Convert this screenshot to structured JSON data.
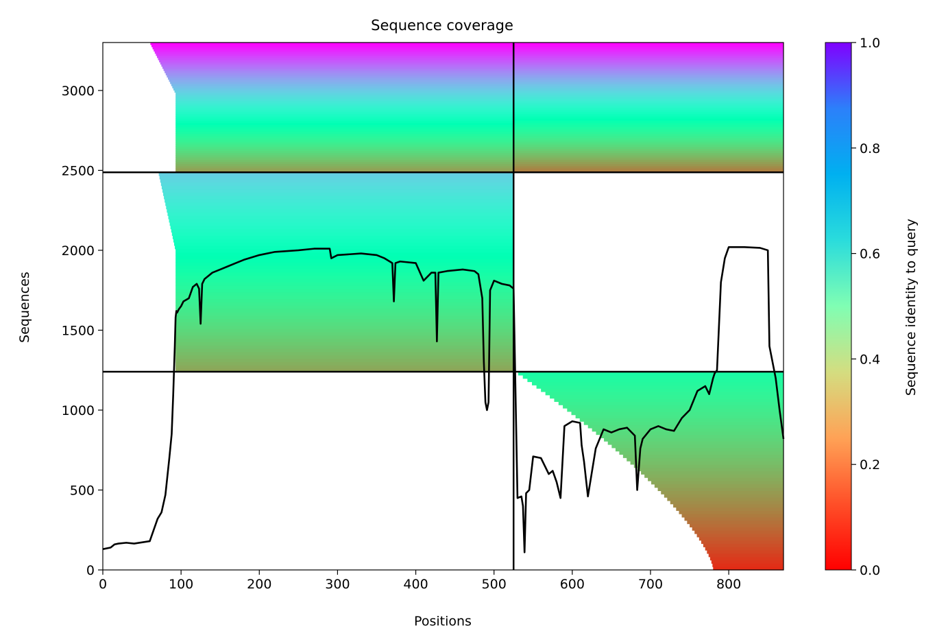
{
  "chart_data": {
    "type": "heatmap",
    "title": "Sequence coverage",
    "xlabel": "Positions",
    "ylabel": "Sequences",
    "xlim": [
      0,
      870
    ],
    "ylim": [
      0,
      3300
    ],
    "x_ticks": [
      "0",
      "100",
      "200",
      "300",
      "400",
      "500",
      "600",
      "700",
      "800"
    ],
    "y_ticks": [
      "0",
      "500",
      "1000",
      "1500",
      "2000",
      "2500",
      "3000"
    ],
    "colorbar": {
      "label": "Sequence identity to query",
      "colormap": "rainbow_r",
      "range": [
        0,
        1
      ],
      "ticks": [
        "0.0",
        "0.2",
        "0.4",
        "0.6",
        "0.8",
        "1.0"
      ]
    },
    "dividers": {
      "x": [
        525
      ],
      "y": [
        1240,
        2488
      ]
    },
    "blocks": [
      {
        "name": "block-1",
        "x": [
          0,
          525
        ],
        "y": [
          1240,
          2488
        ],
        "coverage_start": 93,
        "identity_bottom": 0.22,
        "identity_top": 0.7
      },
      {
        "name": "block-2",
        "x": [
          0,
          525
        ],
        "y": [
          2488,
          3300
        ],
        "coverage_start": 93,
        "identity_bottom": 0.2,
        "identity_top": 1.0
      },
      {
        "name": "block-3",
        "x": [
          525,
          870
        ],
        "y": [
          2488,
          3300
        ],
        "coverage_start": 525,
        "identity_bottom": 0.15,
        "identity_top": 1.0
      },
      {
        "name": "block-4",
        "x": [
          525,
          870
        ],
        "y": [
          0,
          1240
        ],
        "coverage_start": 780,
        "identity_bottom": 0.05,
        "identity_top": 0.45
      }
    ],
    "coverage_line": {
      "x": [
        0,
        10,
        15,
        20,
        30,
        40,
        60,
        65,
        70,
        75,
        80,
        85,
        88,
        90,
        92,
        93,
        94,
        95,
        97,
        100,
        103,
        110,
        115,
        120,
        123,
        125,
        127,
        130,
        140,
        150,
        160,
        170,
        180,
        200,
        220,
        250,
        270,
        290,
        292,
        300,
        330,
        350,
        360,
        370,
        372,
        374,
        380,
        400,
        410,
        420,
        425,
        427,
        429,
        440,
        460,
        475,
        480,
        485,
        487,
        489,
        491,
        493,
        495,
        500,
        510,
        520,
        525,
        530,
        535,
        537,
        539,
        541,
        545,
        550,
        560,
        570,
        575,
        580,
        585,
        590,
        600,
        610,
        612,
        615,
        620,
        630,
        640,
        650,
        660,
        670,
        680,
        683,
        687,
        690,
        700,
        710,
        720,
        730,
        740,
        750,
        755,
        760,
        770,
        775,
        780,
        782,
        785,
        790,
        795,
        800,
        820,
        840,
        850,
        852,
        860,
        865,
        870
      ],
      "y": [
        130,
        140,
        160,
        165,
        170,
        165,
        180,
        250,
        320,
        360,
        470,
        700,
        850,
        1100,
        1400,
        1580,
        1620,
        1610,
        1630,
        1650,
        1680,
        1700,
        1770,
        1790,
        1760,
        1540,
        1790,
        1820,
        1860,
        1880,
        1900,
        1920,
        1940,
        1970,
        1990,
        2000,
        2010,
        2010,
        1950,
        1970,
        1980,
        1970,
        1950,
        1920,
        1680,
        1920,
        1930,
        1920,
        1810,
        1860,
        1860,
        1430,
        1860,
        1870,
        1880,
        1870,
        1850,
        1700,
        1300,
        1050,
        1000,
        1050,
        1750,
        1810,
        1790,
        1780,
        1760,
        450,
        460,
        400,
        110,
        480,
        500,
        710,
        700,
        600,
        620,
        550,
        450,
        900,
        930,
        920,
        780,
        680,
        460,
        760,
        880,
        860,
        880,
        890,
        840,
        500,
        760,
        820,
        880,
        900,
        880,
        870,
        950,
        1000,
        1060,
        1120,
        1150,
        1100,
        1200,
        1230,
        1250,
        1800,
        1950,
        2020,
        2020,
        2015,
        2000,
        1400,
        1200,
        1000,
        820
      ]
    }
  }
}
